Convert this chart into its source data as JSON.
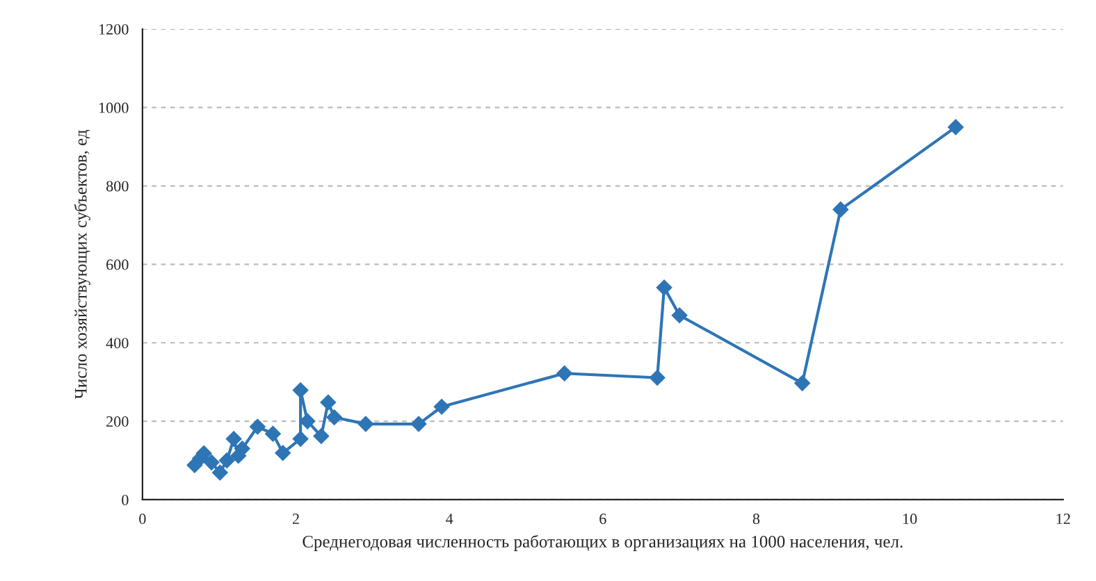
{
  "chart_data": {
    "type": "line",
    "xlabel": "Среднегодовая численность работающих в организациях на 1000 населения, чел.",
    "ylabel": "Число хозяйствующих субъектов, ед",
    "series": [
      {
        "color": "#2e75b6",
        "marker": "diamond",
        "line_style": "solid",
        "x": [
          0.68,
          0.75,
          0.8,
          0.9,
          1.01,
          1.1,
          1.19,
          1.25,
          1.3,
          1.5,
          1.7,
          1.83,
          2.06,
          2.06,
          2.15,
          2.33,
          2.42,
          2.5,
          2.91,
          3.6,
          3.9,
          5.5,
          6.71,
          6.8,
          7.0,
          8.6,
          9.1,
          10.6
        ],
        "values": [
          88,
          105,
          118,
          95,
          69,
          100,
          155,
          112,
          130,
          186,
          168,
          119,
          155,
          279,
          200,
          162,
          248,
          210,
          193,
          193,
          237,
          322,
          311,
          541,
          470,
          297,
          740,
          950
        ]
      }
    ],
    "xlim": [
      0,
      12
    ],
    "xticks": [
      0,
      2,
      4,
      6,
      8,
      10,
      12
    ],
    "ylim": [
      0,
      1200
    ],
    "yticks": [
      0,
      200,
      400,
      600,
      800,
      1000,
      1200
    ],
    "grid": "y",
    "legend": false
  }
}
